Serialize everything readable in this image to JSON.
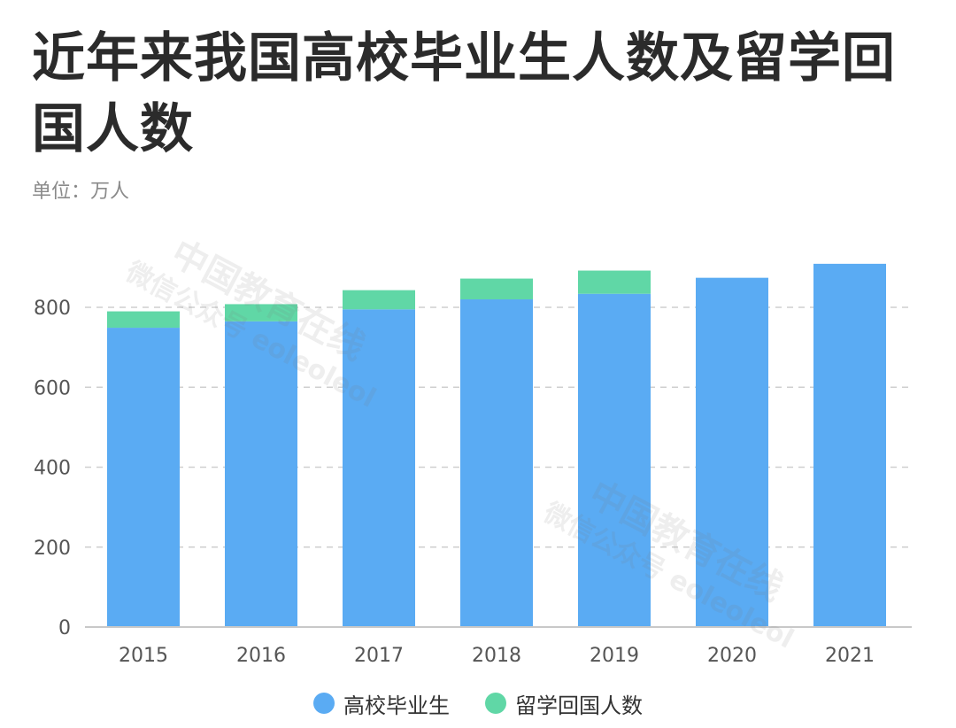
{
  "title": "近年来我国高校毕业生人数及留学回国人数",
  "unit": "单位：万人",
  "watermark": {
    "line1": "中国教育在线",
    "line2": "微信公众号 eoleoleol"
  },
  "colors": {
    "graduates": "#5aabf3",
    "returnees": "#60d7a6",
    "axis": "#c8c8c8",
    "grid": "#cfcfcf",
    "tick_text": "#555555"
  },
  "chart_data": {
    "type": "bar",
    "stacked": true,
    "categories": [
      "2015",
      "2016",
      "2017",
      "2018",
      "2019",
      "2020",
      "2021"
    ],
    "series": [
      {
        "name": "高校毕业生",
        "values": [
          749,
          765,
          795,
          820,
          834,
          874,
          909
        ]
      },
      {
        "name": "留学回国人数",
        "values": [
          41,
          43,
          48,
          52,
          58,
          null,
          null
        ]
      }
    ],
    "ylim": [
      0,
      900
    ],
    "yticks": [
      0,
      200,
      400,
      600,
      800
    ],
    "grid": true,
    "legend_position": "bottom-center"
  }
}
